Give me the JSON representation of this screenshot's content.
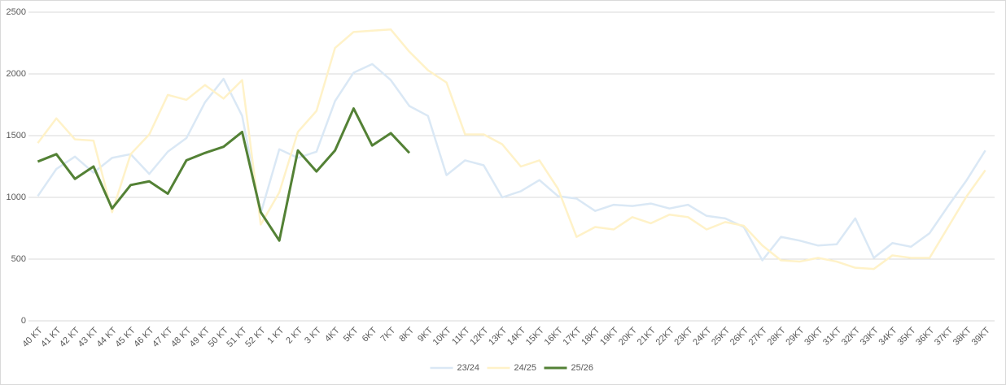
{
  "chart_data": {
    "type": "line",
    "categories": [
      "40 KT",
      "41 KT",
      "42 KT",
      "43 KT",
      "44 KT",
      "45 KT",
      "46 KT",
      "47 KT",
      "48  KT",
      "49 KT",
      "50 KT",
      "51 KT",
      "52 KT",
      "1 KT",
      "2 KT",
      "3 KT",
      "4KT",
      "5KT",
      "6KT",
      "7KT",
      "8KT",
      "9KT",
      "10KT",
      "11KT",
      "12KT",
      "13KT",
      "14KT",
      "15KT",
      "16KT",
      "17KT",
      "18KT",
      "19KT",
      "20KT",
      "21KT",
      "22KT",
      "23KT",
      "24KT",
      "25KT",
      "26KT",
      "27KT",
      "28KT",
      "29KT",
      "30KT",
      "31KT",
      "32KT",
      "33KT",
      "34KT",
      "35KT",
      "36KT",
      "37KT",
      "38KT",
      "39KT"
    ],
    "series": [
      {
        "name": "23/24",
        "color": "#dae8f5",
        "values": [
          1010,
          1230,
          1330,
          1200,
          1320,
          1350,
          1190,
          1370,
          1480,
          1770,
          1960,
          1660,
          870,
          1390,
          1320,
          1370,
          1780,
          2010,
          2080,
          1950,
          1740,
          1660,
          1180,
          1300,
          1260,
          1000,
          1050,
          1140,
          1010,
          990,
          890,
          940,
          930,
          950,
          910,
          940,
          850,
          830,
          760,
          490,
          680,
          650,
          610,
          620,
          830,
          510,
          630,
          600,
          710,
          930,
          1140,
          1380
        ]
      },
      {
        "name": "24/25",
        "color": "#fff2c8",
        "values": [
          1440,
          1640,
          1470,
          1460,
          880,
          1350,
          1510,
          1830,
          1790,
          1910,
          1800,
          1950,
          780,
          1040,
          1530,
          1700,
          2210,
          2340,
          2350,
          2360,
          2180,
          2030,
          1930,
          1510,
          1510,
          1430,
          1250,
          1300,
          1070,
          680,
          760,
          740,
          840,
          790,
          860,
          840,
          740,
          800,
          770,
          610,
          490,
          480,
          510,
          480,
          430,
          420,
          530,
          510,
          510,
          760,
          1010,
          1220
        ]
      },
      {
        "name": "25/26",
        "color": "#538135",
        "values": [
          1290,
          1350,
          1150,
          1250,
          910,
          1100,
          1130,
          1030,
          1300,
          1360,
          1410,
          1530,
          880,
          650,
          1380,
          1210,
          1380,
          1720,
          1420,
          1520,
          1360,
          null,
          null,
          null,
          null,
          null,
          null,
          null,
          null,
          null,
          null,
          null,
          null,
          null,
          null,
          null,
          null,
          null,
          null,
          null,
          null,
          null,
          null,
          null,
          null,
          null,
          null,
          null,
          null,
          null,
          null,
          null
        ]
      }
    ],
    "ylim": [
      0,
      2500
    ],
    "yticks": [
      0,
      500,
      1000,
      1500,
      2000,
      2500
    ],
    "grid": true,
    "legend": "bottom"
  }
}
